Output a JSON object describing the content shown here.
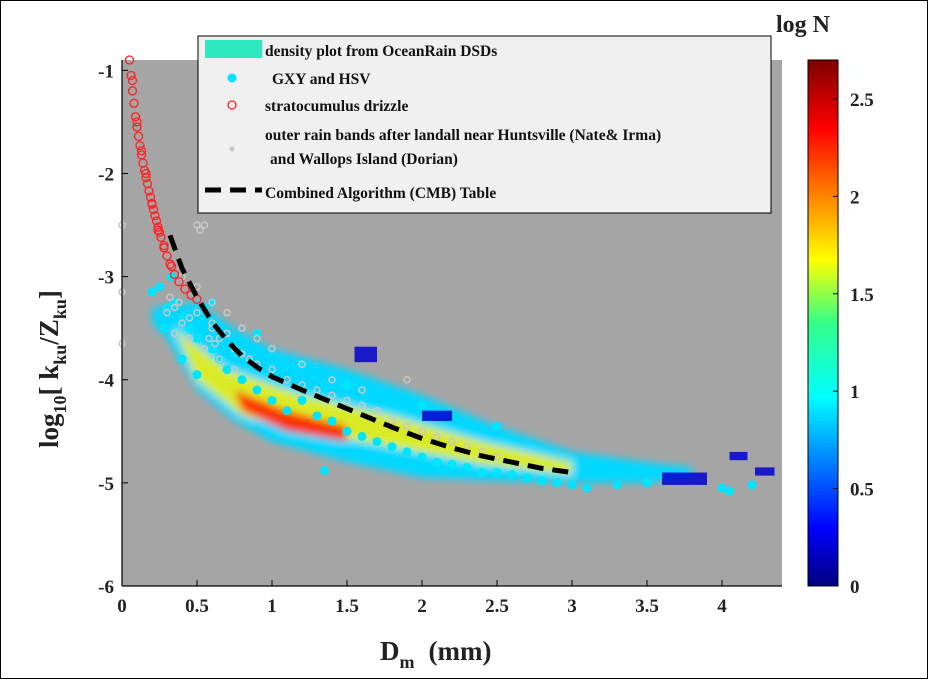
{
  "chart_data": {
    "type": "scatter",
    "xlabel": "D",
    "xlabel_sub": "m",
    "xlabel_unit": "(mm)",
    "ylabel_prefix": "log",
    "ylabel_prefix_sub": "10",
    "ylabel_open": "[ k",
    "ylabel_k_sub": "ku",
    "ylabel_slash": "/Z",
    "ylabel_z_sub": "ku",
    "ylabel_close": "]",
    "xlim": [
      0,
      4.4
    ],
    "ylim": [
      -6,
      -0.9
    ],
    "xticks": [
      "0",
      "0.5",
      "1",
      "1.5",
      "2",
      "2.5",
      "3",
      "3.5",
      "4"
    ],
    "xtick_values": [
      0,
      0.5,
      1,
      1.5,
      2,
      2.5,
      3,
      3.5,
      4
    ],
    "yticks": [
      "-1",
      "-2",
      "-3",
      "-4",
      "-5",
      "-6"
    ],
    "ytick_values": [
      -1,
      -2,
      -3,
      -4,
      -5,
      -6
    ],
    "background_color": "#a5a5a5",
    "colorbar": {
      "title": "log N",
      "range": [
        0,
        2.7
      ],
      "ticks": [
        "0",
        "0.5",
        "1",
        "1.5",
        "2",
        "2.5"
      ],
      "tick_values": [
        0,
        0.5,
        1,
        1.5,
        2,
        2.5
      ],
      "colormap": "jet"
    },
    "legend": {
      "placement": "top",
      "entries": [
        {
          "label": "density plot from OceanRain DSDs",
          "marker": "patch",
          "color": "#2ee8c0"
        },
        {
          "label": "GXY and HSV",
          "marker": "filled-circle",
          "color": "#00e5ff"
        },
        {
          "label": "stratocumulus drizzle",
          "marker": "open-circle",
          "color": "#ff2020"
        },
        {
          "label": "outer rain bands after landall near Huntsville (Nate& Irma)",
          "label2": "and Wallops Island (Dorian)",
          "marker": "small-dot",
          "color": "#c8c8c8"
        },
        {
          "label": "Combined Algorithm (CMB) Table",
          "marker": "dashed-line",
          "color": "#000000"
        }
      ]
    },
    "series": [
      {
        "name": "Combined Algorithm (CMB) Table",
        "style": "dashed-line",
        "color": "#000000",
        "x": [
          0.32,
          0.4,
          0.5,
          0.6,
          0.7,
          0.8,
          0.9,
          1.0,
          1.2,
          1.4,
          1.6,
          1.8,
          2.0,
          2.2,
          2.4,
          2.6,
          2.8,
          3.0
        ],
        "y": [
          -2.6,
          -2.92,
          -3.2,
          -3.44,
          -3.62,
          -3.77,
          -3.88,
          -3.97,
          -4.1,
          -4.22,
          -4.34,
          -4.46,
          -4.57,
          -4.66,
          -4.74,
          -4.8,
          -4.86,
          -4.9
        ]
      },
      {
        "name": "stratocumulus drizzle",
        "style": "open-circle",
        "color": "#ff2020",
        "x": [
          0.05,
          0.06,
          0.07,
          0.08,
          0.09,
          0.1,
          0.11,
          0.12,
          0.13,
          0.14,
          0.15,
          0.16,
          0.17,
          0.18,
          0.19,
          0.2,
          0.21,
          0.22,
          0.23,
          0.24,
          0.25,
          0.26,
          0.28,
          0.3,
          0.32,
          0.35,
          0.38,
          0.42,
          0.46,
          0.5,
          0.07,
          0.1,
          0.13,
          0.16,
          0.2,
          0.24,
          0.28,
          0.33
        ],
        "y": [
          -0.9,
          -1.05,
          -1.2,
          -1.32,
          -1.45,
          -1.55,
          -1.64,
          -1.73,
          -1.82,
          -1.9,
          -1.97,
          -2.04,
          -2.1,
          -2.17,
          -2.23,
          -2.29,
          -2.35,
          -2.41,
          -2.46,
          -2.52,
          -2.57,
          -2.62,
          -2.72,
          -2.8,
          -2.88,
          -2.98,
          -3.05,
          -3.12,
          -3.18,
          -3.22,
          -1.1,
          -1.5,
          -1.78,
          -2.0,
          -2.3,
          -2.55,
          -2.7,
          -2.9
        ]
      },
      {
        "name": "GXY and HSV",
        "style": "filled-circle",
        "color": "#00e5ff",
        "x": [
          0.2,
          0.25,
          0.3,
          0.35,
          0.4,
          0.45,
          0.5,
          0.55,
          0.6,
          0.65,
          0.7,
          0.8,
          0.9,
          1.0,
          1.1,
          1.2,
          1.3,
          1.4,
          1.5,
          1.6,
          1.7,
          1.8,
          1.9,
          2.0,
          2.1,
          2.2,
          2.3,
          2.4,
          2.5,
          2.6,
          2.7,
          2.8,
          2.9,
          3.0,
          3.1,
          3.3,
          3.5,
          4.0,
          4.05,
          4.2,
          1.35,
          0.28,
          0.33,
          0.6,
          0.9,
          1.2,
          1.5,
          2.0,
          2.5,
          0.4,
          0.5,
          0.75
        ],
        "y": [
          -3.15,
          -3.1,
          -3.3,
          -3.25,
          -3.4,
          -3.5,
          -3.6,
          -3.3,
          -3.7,
          -3.8,
          -3.9,
          -4.0,
          -4.1,
          -4.2,
          -4.3,
          -4.2,
          -4.35,
          -4.4,
          -4.5,
          -4.55,
          -4.6,
          -4.65,
          -4.7,
          -4.75,
          -4.8,
          -4.82,
          -4.85,
          -4.9,
          -4.9,
          -4.92,
          -4.95,
          -4.98,
          -5.0,
          -5.02,
          -5.05,
          -5.02,
          -5.0,
          -5.05,
          -5.08,
          -5.02,
          -4.88,
          -3.5,
          -3.0,
          -3.25,
          -3.55,
          -3.85,
          -4.05,
          -4.25,
          -4.45,
          -3.8,
          -3.95,
          -3.75
        ]
      },
      {
        "name": "outer rain bands after landall near Huntsville (Nate& Irma) and Wallops Island (Dorian)",
        "style": "small-dot",
        "color": "#c8c8c8",
        "x": [
          0.0,
          0.0,
          0.0,
          0.3,
          0.35,
          0.4,
          0.45,
          0.5,
          0.52,
          0.55,
          0.58,
          0.6,
          0.65,
          0.7,
          0.75,
          0.8,
          0.85,
          0.9,
          1.0,
          1.1,
          1.2,
          1.3,
          1.4,
          1.5,
          1.6,
          1.7,
          1.8,
          1.9,
          2.0,
          2.1,
          2.2,
          2.3,
          2.4,
          2.5,
          0.4,
          0.5,
          0.6,
          0.7,
          0.8,
          0.9,
          1.0,
          1.2,
          1.4,
          1.6,
          0.35,
          0.45,
          0.55,
          0.65,
          0.75,
          0.32,
          0.38,
          0.5,
          0.6,
          0.7,
          0.62,
          1.9
        ],
        "y": [
          -2.5,
          -3.15,
          -3.65,
          -3.35,
          -3.3,
          -3.45,
          -3.4,
          -2.5,
          -2.55,
          -2.5,
          -3.6,
          -3.5,
          -3.6,
          -3.55,
          -3.7,
          -3.75,
          -3.8,
          -3.85,
          -3.9,
          -4.0,
          -4.05,
          -4.1,
          -4.15,
          -4.2,
          -4.25,
          -4.3,
          -4.4,
          -4.45,
          -4.5,
          -4.55,
          -4.6,
          -4.65,
          -4.7,
          -4.75,
          -3.0,
          -3.1,
          -3.25,
          -3.35,
          -3.5,
          -3.6,
          -3.7,
          -3.85,
          -4.0,
          -4.1,
          -3.55,
          -3.6,
          -3.7,
          -3.8,
          -3.9,
          -3.2,
          -3.25,
          -3.35,
          -3.45,
          -3.55,
          -3.65,
          -4.0
        ]
      }
    ]
  }
}
